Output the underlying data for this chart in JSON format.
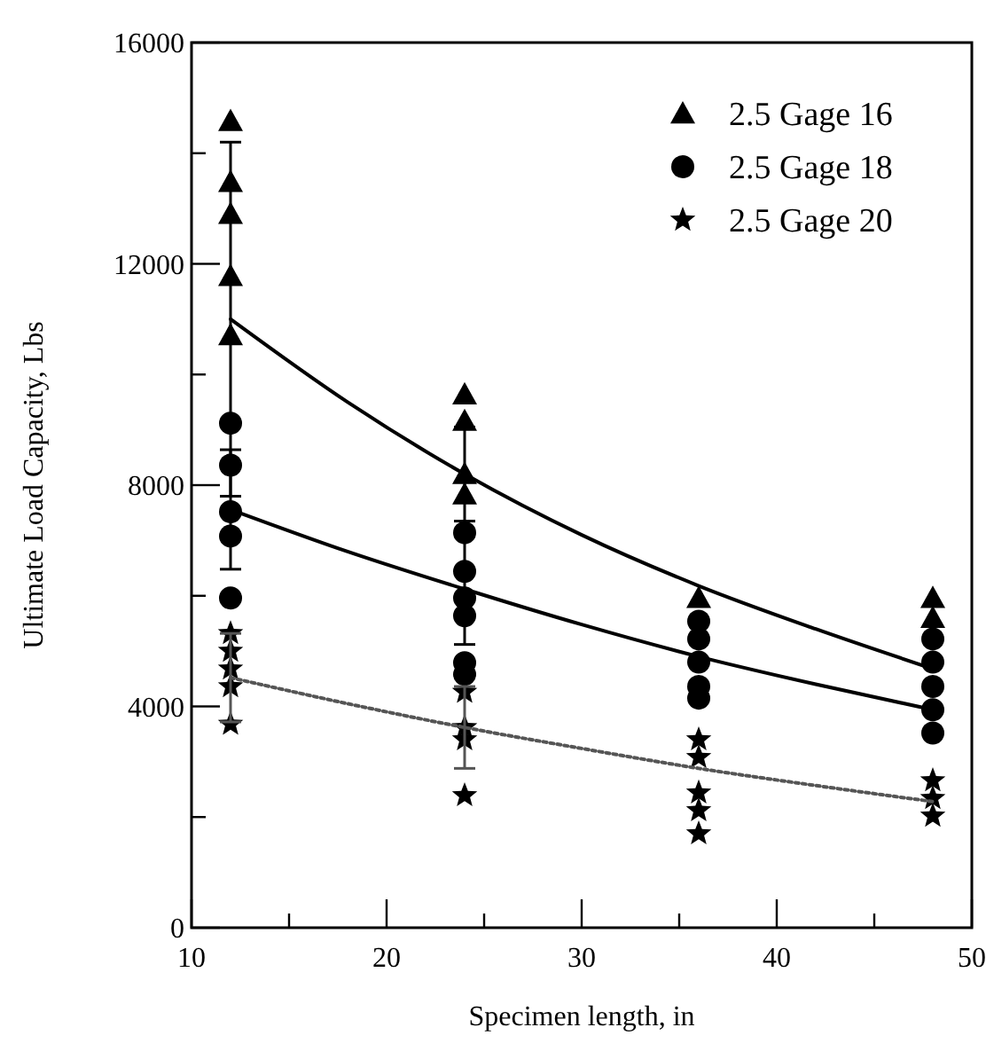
{
  "chart_data": {
    "type": "scatter",
    "xlabel": "Specimen length, in",
    "ylabel": "Ultimate Load Capacity, Lbs",
    "xlim": [
      10,
      50
    ],
    "ylim": [
      0,
      16000
    ],
    "xticks": [
      10,
      {
        "value": 15,
        "label": null
      },
      20,
      {
        "value": 25,
        "label": null
      },
      30,
      {
        "value": 35,
        "label": null
      },
      40,
      {
        "value": 45,
        "label": null
      },
      50
    ],
    "yticks": [
      0,
      {
        "value": 2000,
        "label": null
      },
      4000,
      {
        "value": 6000,
        "label": null
      },
      8000,
      {
        "value": 10000,
        "label": null
      },
      12000,
      {
        "value": 14000,
        "label": null
      },
      16000
    ],
    "legend": "top right",
    "grid": false,
    "series": [
      {
        "name": "2.5 Gage 16",
        "marker": "triangle",
        "color": "#000000",
        "x": [
          12,
          12,
          12,
          12,
          12,
          24,
          24,
          24,
          24,
          36,
          48,
          48
        ],
        "values": [
          14580,
          13480,
          12900,
          11780,
          10710,
          9640,
          9160,
          8200,
          7830,
          5960,
          5960,
          5600
        ]
      },
      {
        "name": "2.5 Gage 18",
        "marker": "circle",
        "color": "#000000",
        "x": [
          12,
          12,
          12,
          12,
          12,
          24,
          24,
          24,
          24,
          24,
          24,
          36,
          36,
          36,
          36,
          36,
          48,
          48,
          48,
          48,
          48
        ],
        "values": [
          9120,
          8360,
          7520,
          7080,
          5960,
          7140,
          6440,
          5960,
          5640,
          4790,
          4580,
          5540,
          5220,
          4800,
          4360,
          4150,
          5220,
          4800,
          4360,
          3940,
          3520
        ]
      },
      {
        "name": "2.5 Gage 20",
        "marker": "star",
        "color": "#000000",
        "x": [
          12,
          12,
          12,
          12,
          12,
          24,
          24,
          24,
          24,
          36,
          36,
          36,
          36,
          36,
          48,
          48,
          48
        ],
        "values": [
          5320,
          5000,
          4680,
          4360,
          3680,
          4260,
          3620,
          3400,
          2390,
          3400,
          3080,
          2440,
          2120,
          1700,
          2660,
          2340,
          2020
        ]
      },
      {
        "type": "line",
        "marker": "none",
        "line_style": "solid",
        "color": "#000000",
        "x": [
          12,
          18,
          24,
          30,
          36,
          42,
          48
        ],
        "values": [
          11000,
          9500,
          8200,
          7100,
          6180,
          5400,
          4680
        ],
        "errors": [
          3200,
          null,
          850,
          null,
          null,
          null,
          null
        ]
      },
      {
        "type": "line",
        "marker": "none",
        "line_style": "solid",
        "color": "#000000",
        "x": [
          12,
          18,
          24,
          30,
          36,
          42,
          48
        ],
        "values": [
          7560,
          6800,
          6120,
          5480,
          4900,
          4400,
          3940
        ],
        "errors": [
          1080,
          null,
          1000,
          null,
          null,
          null,
          null
        ]
      },
      {
        "type": "line",
        "marker": "none",
        "line_style": "dotted",
        "color": "#555555",
        "x": [
          12,
          18,
          24,
          30,
          36,
          42,
          48
        ],
        "values": [
          4520,
          4050,
          3620,
          3240,
          2880,
          2570,
          2280
        ],
        "errors": [
          800,
          null,
          740,
          null,
          null,
          null,
          null
        ]
      }
    ]
  }
}
